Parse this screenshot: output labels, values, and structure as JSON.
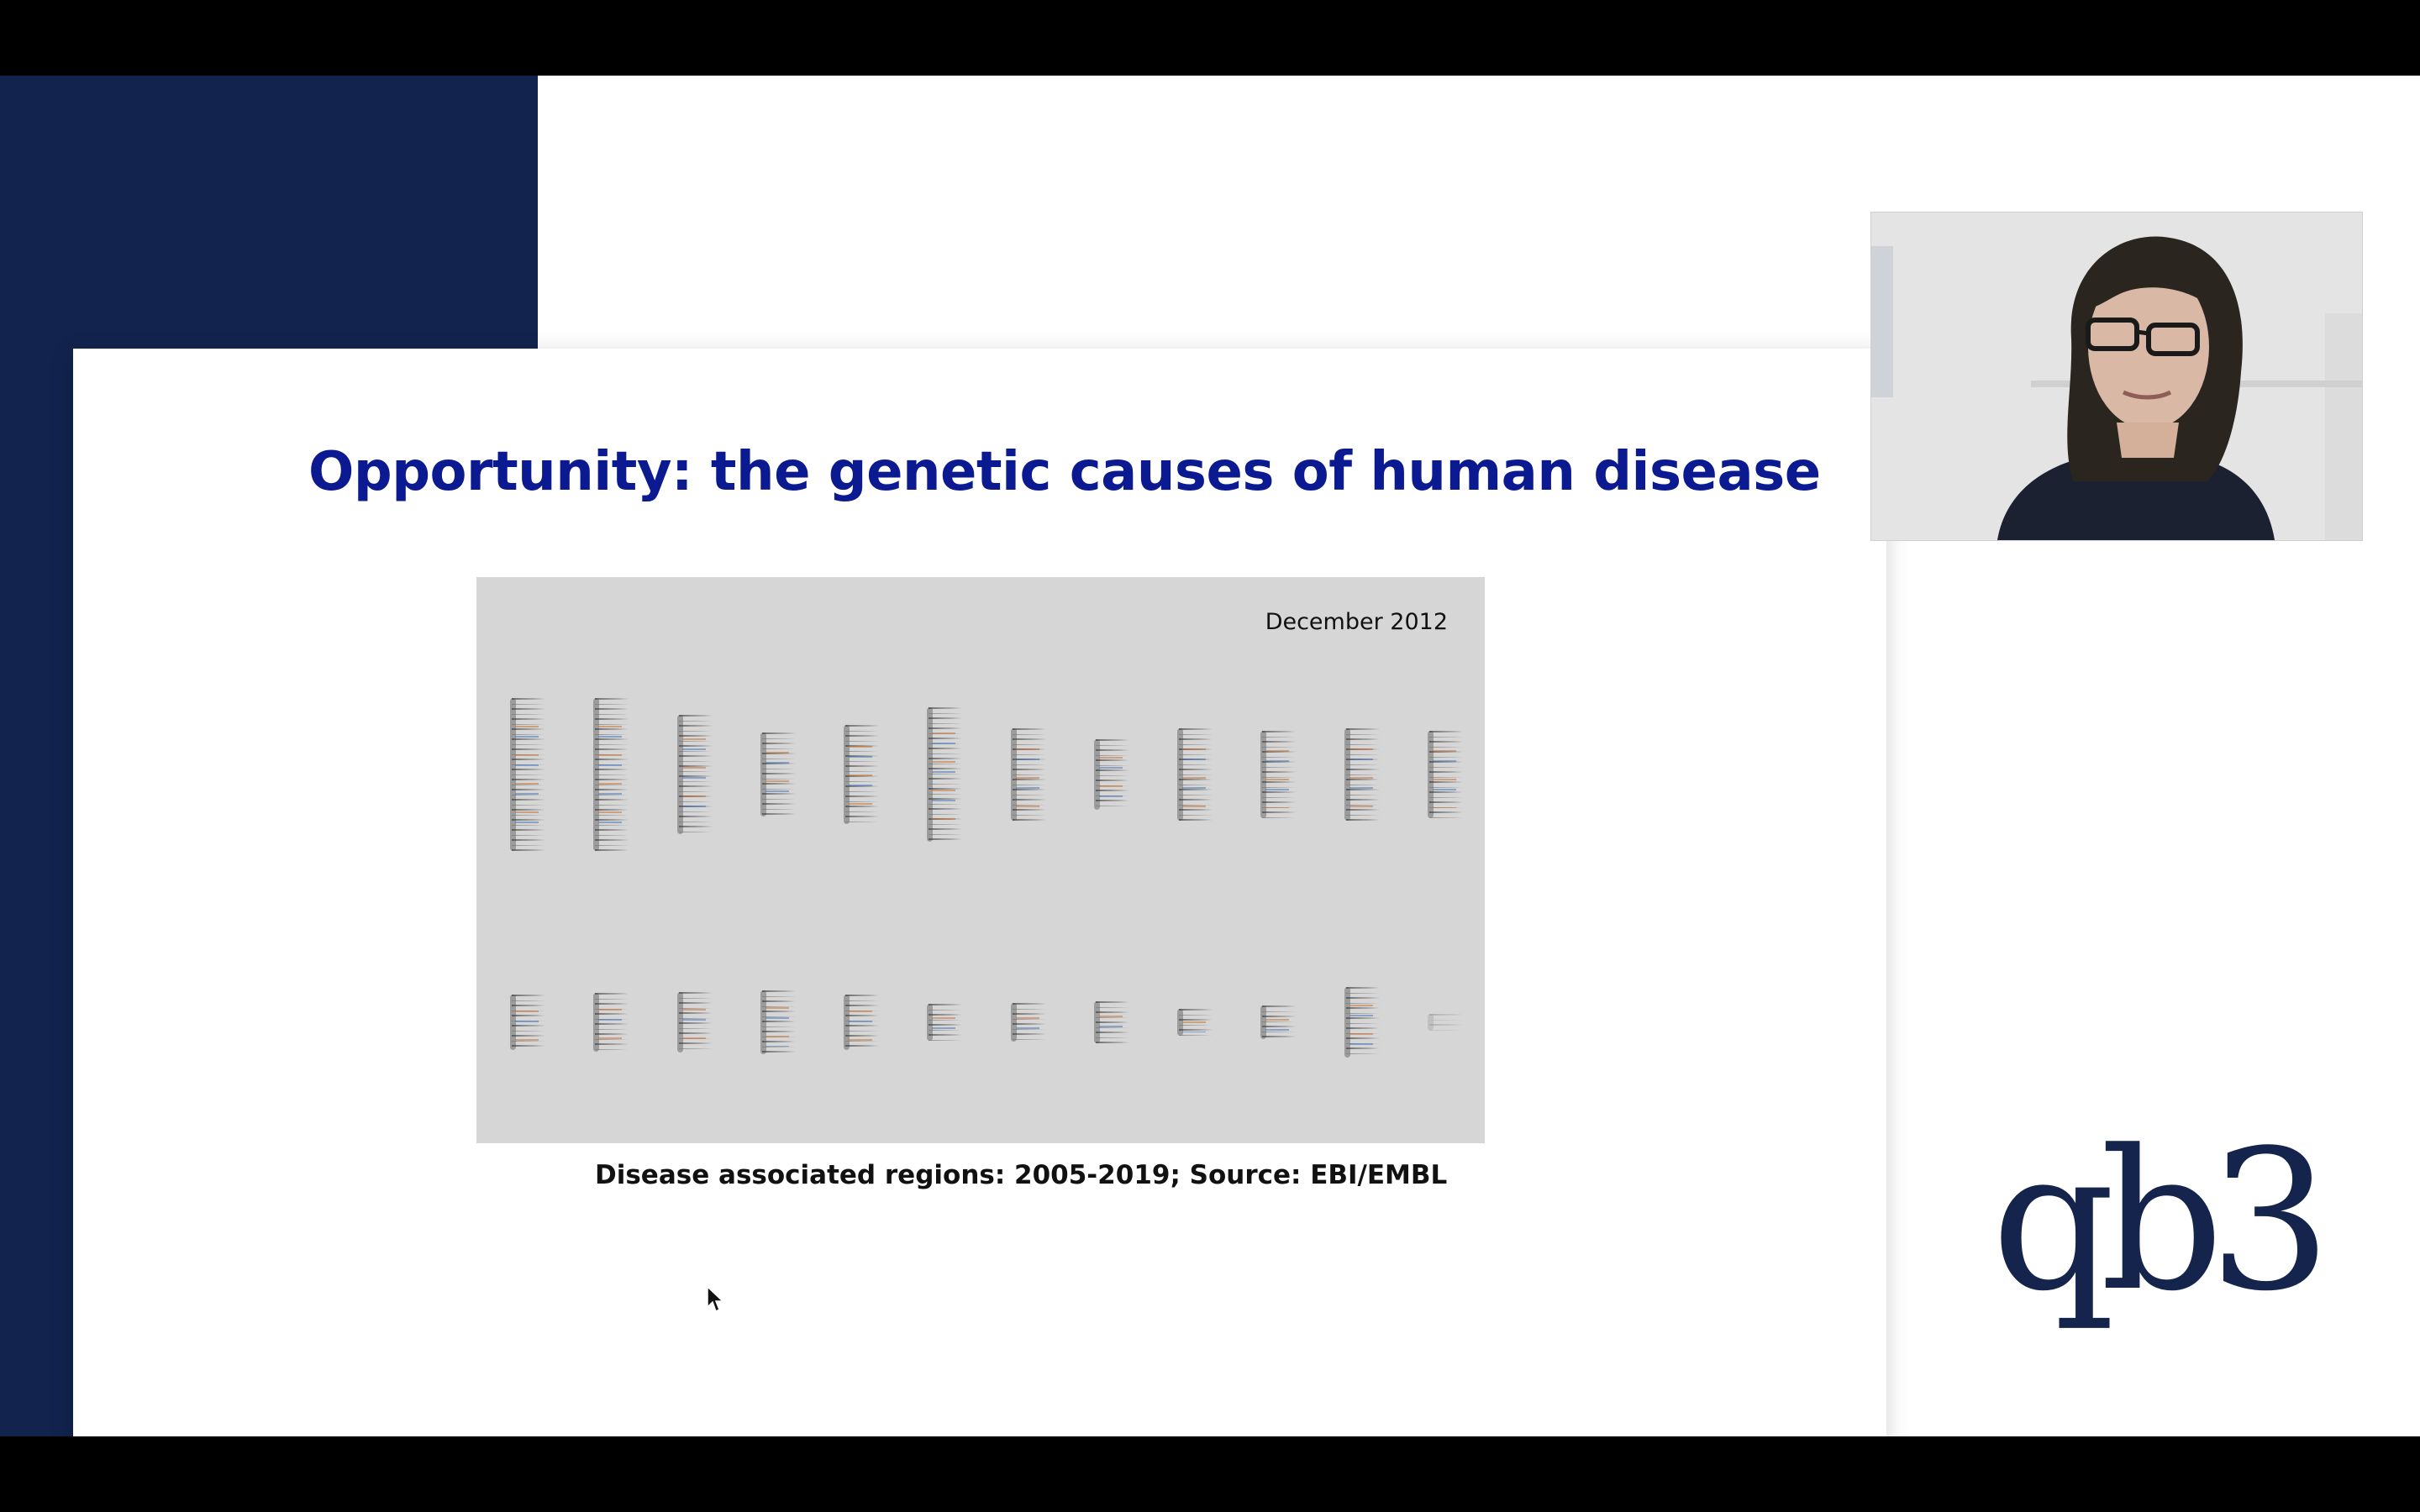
{
  "slide": {
    "title": "Opportunity: the genetic causes of human disease",
    "figure_date": "December 2012",
    "caption": "Disease associated regions: 2005-2019; Source: EBI/EMBL"
  },
  "logo": {
    "text": "qb3"
  },
  "colors": {
    "navy_panel": "#12244e",
    "title_blue": "#0b1a91",
    "figure_background": "#d6d6d6",
    "logo": "#14244c"
  },
  "icons": {
    "cursor": "mouse-pointer-arrow"
  }
}
